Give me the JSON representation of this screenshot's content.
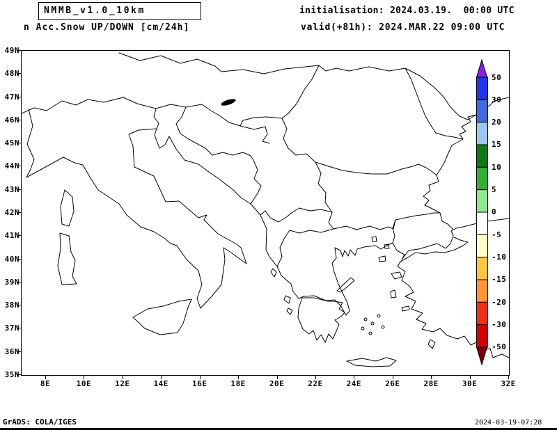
{
  "header": {
    "model_title": "NMMB_v1.0_10km",
    "product_title": "n Acc.Snow UP/DOWN [cm/24h]",
    "init_line": "initialisation: 2024.03.19.  00:00 UTC",
    "valid_line": "valid(+81h): 2024.MAR.22 09:00 UTC"
  },
  "footer": {
    "credit": "GrADS: COLA/IGES",
    "timestamp": "2024-03-19-07:28"
  },
  "chart_data": {
    "type": "heatmap",
    "title": "Acc.Snow UP/DOWN [cm/24h]",
    "model": "NMMB_v1.0_10km",
    "init": "2024.03.19 00:00 UTC",
    "valid": "2024.MAR.22 09:00 UTC (+81h)",
    "units": "cm/24h",
    "map_region": {
      "lon_range_deg_east": [
        6.7,
        32
      ],
      "lat_range_deg_north": [
        35,
        49
      ]
    },
    "x_ticks": [
      "8E",
      "10E",
      "12E",
      "14E",
      "16E",
      "18E",
      "20E",
      "22E",
      "24E",
      "26E",
      "28E",
      "30E",
      "32E"
    ],
    "y_ticks": [
      "49N",
      "48N",
      "47N",
      "46N",
      "45N",
      "44N",
      "43N",
      "42N",
      "41N",
      "40N",
      "39N",
      "38N",
      "37N",
      "36N",
      "35N"
    ],
    "grid": false,
    "legend_position": "vertical colorbar at right",
    "colorbar": {
      "labels_top_to_bottom": [
        "50",
        "30",
        "20",
        "15",
        "10",
        "5",
        "0",
        "-5",
        "-10",
        "-15",
        "-20",
        "-30",
        "-50"
      ],
      "colors_top_to_bottom": [
        "#8a1ee0",
        "#2233ee",
        "#4169e1",
        "#9ec7ef",
        "#0f7a14",
        "#32b032",
        "#8fe98f",
        "#ffffff",
        "#ffffc8",
        "#ffc83c",
        "#ff9632",
        "#f03214",
        "#d40000",
        "#7d0000"
      ]
    },
    "field_shading_visible": "none (no snow accumulation shading drawn on map; coastlines and country borders only)"
  }
}
